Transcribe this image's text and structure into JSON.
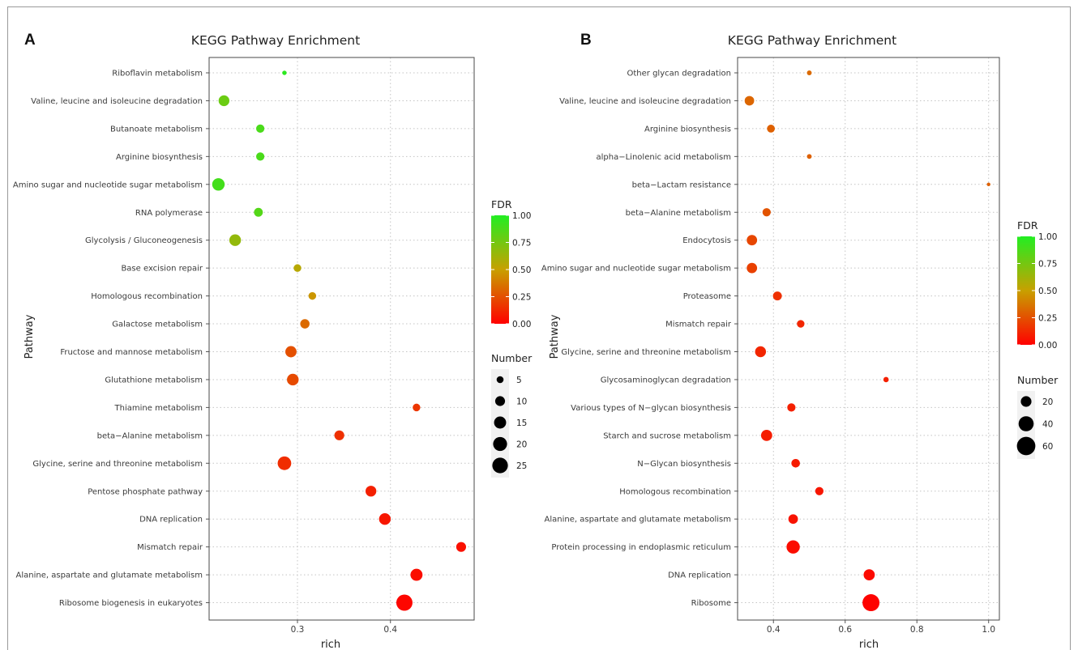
{
  "chart_data": [
    {
      "panel": "A",
      "type": "scatter",
      "title": "KEGG Pathway Enrichment",
      "xlabel": "rich",
      "ylabel": "Pathway",
      "xlim": [
        0.205,
        0.49
      ],
      "xticks": [
        0.3,
        0.4
      ],
      "xtick_labels": [
        "0.3",
        "0.4"
      ],
      "grid": true,
      "legend_position": "right",
      "color_legend": {
        "title": "FDR",
        "ticks": [
          "1.00",
          "0.75",
          "0.50",
          "0.25",
          "0.00"
        ],
        "low_color": "#ff0000",
        "mid_color": "#c8a000",
        "high_color": "#22ee22"
      },
      "size_legend": {
        "title": "Number",
        "values": [
          5,
          10,
          15,
          20,
          25
        ]
      },
      "pathways": [
        "Riboflavin metabolism",
        "Valine, leucine and isoleucine degradation",
        "Butanoate metabolism",
        "Arginine biosynthesis",
        "Amino sugar and nucleotide sugar metabolism",
        "RNA polymerase",
        "Glycolysis / Gluconeogenesis",
        "Base excision repair",
        "Homologous recombination",
        "Galactose metabolism",
        "Fructose and mannose metabolism",
        "Glutathione metabolism",
        "Thiamine metabolism",
        "beta−Alanine metabolism",
        "Glycine, serine and threonine metabolism",
        "Pentose phosphate pathway",
        "DNA replication",
        "Mismatch repair",
        "Alanine, aspartate and glutamate metabolism",
        "Ribosome biogenesis in eukaryotes"
      ],
      "rich": [
        0.286,
        0.221,
        0.26,
        0.26,
        0.215,
        0.258,
        0.233,
        0.3,
        0.316,
        0.308,
        0.293,
        0.295,
        0.428,
        0.345,
        0.286,
        0.379,
        0.394,
        0.476,
        0.428,
        0.415
      ],
      "number": [
        2,
        12,
        7,
        7,
        16,
        8,
        14,
        6,
        6,
        9,
        13,
        14,
        6,
        10,
        19,
        12,
        14,
        10,
        15,
        27
      ],
      "fdr": [
        0.97,
        0.78,
        0.88,
        0.88,
        0.9,
        0.85,
        0.66,
        0.55,
        0.47,
        0.33,
        0.25,
        0.23,
        0.17,
        0.15,
        0.14,
        0.1,
        0.07,
        0.05,
        0.04,
        0.02
      ]
    },
    {
      "panel": "B",
      "type": "scatter",
      "title": "KEGG Pathway Enrichment",
      "xlabel": "rich",
      "ylabel": "Pathway",
      "xlim": [
        0.3,
        1.03
      ],
      "xticks": [
        0.4,
        0.6,
        0.8,
        1.0
      ],
      "xtick_labels": [
        "0.4",
        "0.6",
        "0.8",
        "1.0"
      ],
      "grid": true,
      "legend_position": "right",
      "color_legend": {
        "title": "FDR",
        "ticks": [
          "1.00",
          "0.75",
          "0.50",
          "0.25",
          "0.00"
        ],
        "low_color": "#ff0000",
        "mid_color": "#c8a000",
        "high_color": "#22ee22"
      },
      "size_legend": {
        "title": "Number",
        "values": [
          20,
          40,
          60
        ]
      },
      "pathways": [
        "Other glycan degradation",
        "Valine, leucine and isoleucine degradation",
        "Arginine biosynthesis",
        "alpha−Linolenic acid metabolism",
        "beta−Lactam resistance",
        "beta−Alanine metabolism",
        "Endocytosis",
        "Amino sugar and nucleotide sugar metabolism",
        "Proteasome",
        "Mismatch repair",
        "Glycine, serine and threonine metabolism",
        "Glycosaminoglycan degradation",
        "Various types of N−glycan biosynthesis",
        "Starch and sucrose metabolism",
        "N−Glycan biosynthesis",
        "Homologous recombination",
        "Alanine, aspartate and glutamate metabolism",
        "Protein processing in endoplasmic reticulum",
        "DNA replication",
        "Ribosome"
      ],
      "rich": [
        0.5,
        0.333,
        0.393,
        0.5,
        1.0,
        0.381,
        0.34,
        0.34,
        0.411,
        0.476,
        0.364,
        0.714,
        0.45,
        0.381,
        0.462,
        0.528,
        0.455,
        0.455,
        0.667,
        0.672
      ],
      "number": [
        4,
        16,
        11,
        4,
        1,
        12,
        19,
        19,
        14,
        10,
        21,
        5,
        12,
        22,
        13,
        12,
        16,
        31,
        22,
        51
      ],
      "fdr": [
        0.33,
        0.32,
        0.3,
        0.3,
        0.3,
        0.26,
        0.22,
        0.2,
        0.15,
        0.12,
        0.12,
        0.1,
        0.1,
        0.09,
        0.08,
        0.07,
        0.06,
        0.04,
        0.03,
        0.01
      ]
    }
  ]
}
